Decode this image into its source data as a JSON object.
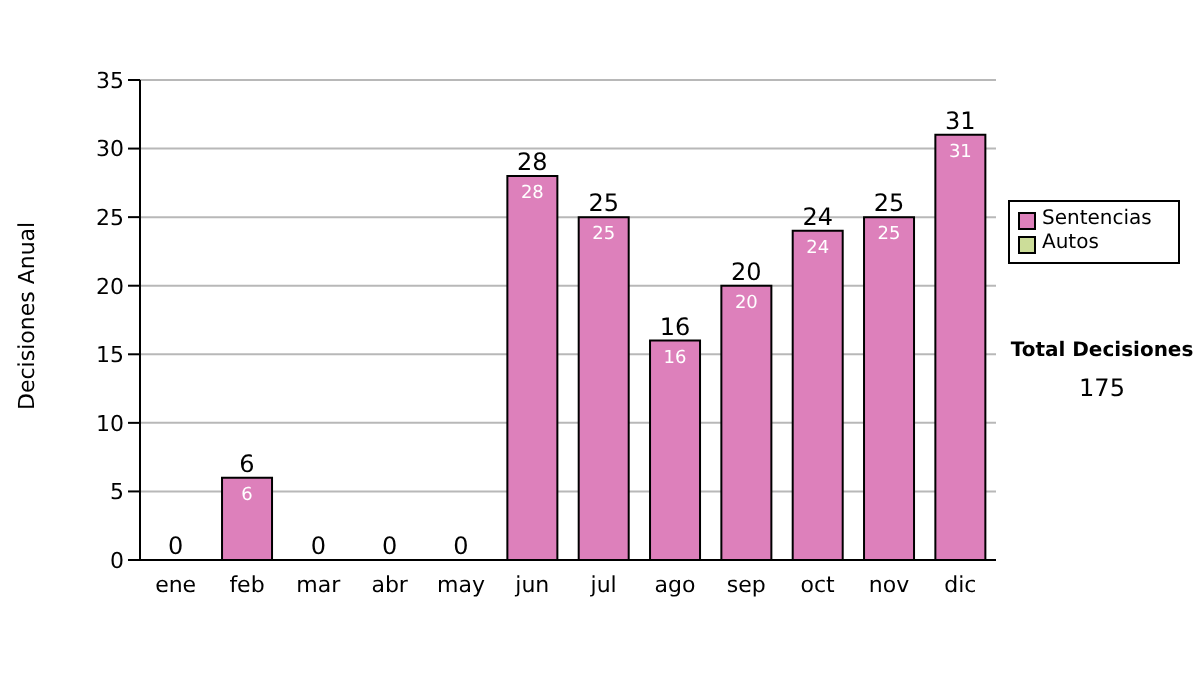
{
  "chart_data": {
    "type": "bar",
    "stacked": true,
    "ylabel": "Decisiones Anual",
    "categories": [
      "ene",
      "feb",
      "mar",
      "abr",
      "may",
      "jun",
      "jul",
      "ago",
      "sep",
      "oct",
      "nov",
      "dic"
    ],
    "series": [
      {
        "name": "Sentencias",
        "color": "#dd80bb",
        "values": [
          0,
          6,
          0,
          0,
          0,
          28,
          25,
          16,
          20,
          24,
          25,
          31
        ],
        "value_labels": [
          null,
          "6",
          null,
          null,
          null,
          "28",
          "25",
          "16",
          "20",
          "24",
          "25",
          "31"
        ]
      },
      {
        "name": "Autos",
        "color": "#ccdd99",
        "values": [
          0,
          0,
          0,
          0,
          0,
          0,
          0,
          0,
          0,
          0,
          0,
          0
        ]
      }
    ],
    "totals": [
      "0",
      "6",
      "0",
      "0",
      "0",
      "28",
      "25",
      "16",
      "20",
      "24",
      "25",
      "31"
    ],
    "ylim": [
      0,
      35
    ],
    "yticks": [
      0,
      5,
      10,
      15,
      20,
      25,
      30,
      35
    ],
    "grid": "y",
    "legend": "right",
    "annotations": [
      "Total Decisiones",
      "175"
    ]
  }
}
